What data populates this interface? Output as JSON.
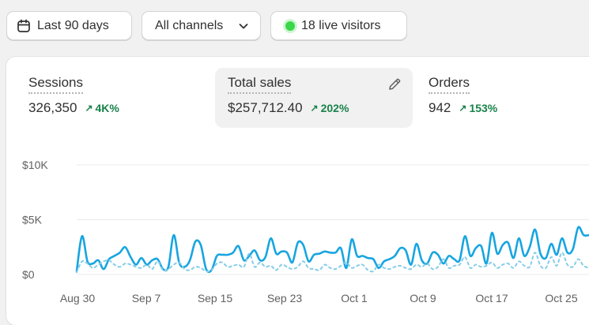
{
  "toolbar": {
    "date_range_label": "Last 90 days",
    "channels_label": "All channels",
    "live_visitors_label": "18 live visitors"
  },
  "metrics": [
    {
      "label": "Sessions",
      "value": "326,350",
      "change": "4K%"
    },
    {
      "label": "Total sales",
      "value": "$257,712.40",
      "change": "202%"
    },
    {
      "label": "Orders",
      "value": "942",
      "change": "153%"
    }
  ],
  "colors": {
    "accent": "#17a5e0",
    "positive": "#19824b",
    "live_dot": "#3bd74a"
  },
  "icons": {
    "calendar": "calendar-icon",
    "chevron": "chevron-down-icon",
    "edit": "pencil-icon",
    "trend": "arrow-up-right-icon"
  },
  "chart_data": {
    "type": "line",
    "title": "",
    "xlabel": "",
    "ylabel": "",
    "ylim": [
      0,
      10000
    ],
    "y_ticks": [
      "$0",
      "$5K",
      "$10K"
    ],
    "x_tick_labels": [
      "Aug 30",
      "Sep 7",
      "Sep 15",
      "Sep 23",
      "Oct 1",
      "Oct 9",
      "Oct 17",
      "Oct 25"
    ],
    "grid": true,
    "series": [
      {
        "style": "solid",
        "values": [
          300,
          3500,
          1200,
          1000,
          1300,
          500,
          1400,
          1700,
          2000,
          2500,
          1600,
          900,
          1500,
          900,
          1300,
          1400,
          500,
          700,
          3600,
          1100,
          700,
          1300,
          3000,
          2700,
          500,
          400,
          1700,
          1800,
          1800,
          2000,
          2600,
          1300,
          1700,
          2200,
          1300,
          1600,
          3300,
          1900,
          2100,
          2000,
          1100,
          2900,
          2700,
          1200,
          1800,
          1900,
          2100,
          2000,
          2000,
          2400,
          600,
          3200,
          1700,
          1700,
          1500,
          1400,
          600,
          1200,
          1400,
          1700,
          2400,
          2200,
          900,
          2800,
          1300,
          1000,
          2000,
          1800,
          1000,
          1700,
          1400,
          1300,
          3500,
          1700,
          2400,
          2600,
          1000,
          3800,
          1900,
          2700,
          2900,
          1500,
          3300,
          1700,
          2500,
          4100,
          1900,
          1500,
          2800,
          1800,
          3300,
          2000,
          2300,
          4300,
          3600,
          3600
        ]
      },
      {
        "style": "dashed",
        "values": [
          200,
          1200,
          1000,
          600,
          900,
          1200,
          1300,
          900,
          700,
          1000,
          900,
          700,
          600,
          900,
          500,
          1200,
          400,
          500,
          900,
          1100,
          500,
          400,
          700,
          600,
          300,
          400,
          1000,
          1100,
          700,
          800,
          900,
          700,
          1900,
          700,
          1100,
          700,
          800,
          400,
          900,
          700,
          500,
          700,
          1200,
          600,
          500,
          400,
          900,
          600,
          500,
          800,
          1100,
          600,
          800,
          900,
          400,
          300,
          900,
          600,
          500,
          700,
          800,
          600,
          500,
          900,
          700,
          1000,
          500,
          700,
          1400,
          600,
          800,
          900,
          1600,
          600,
          900,
          700,
          800,
          1100,
          600,
          900,
          1000,
          600,
          1200,
          800,
          700,
          2000,
          800,
          600,
          1600,
          800,
          2000,
          900,
          700,
          1400,
          800,
          600
        ]
      }
    ]
  }
}
